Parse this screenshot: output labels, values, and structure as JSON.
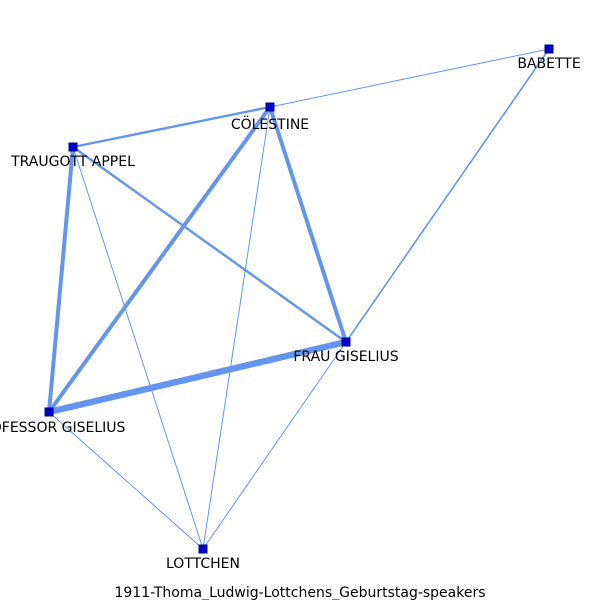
{
  "caption": "1911-Thoma_Ludwig-Lottchens_Geburtstag-speakers",
  "colors": {
    "edge": "#6495ed",
    "node_fill": "#0000cd",
    "node_stroke": "#00008b"
  },
  "nodes": [
    {
      "id": "babette",
      "label": "BABETTE"
    },
    {
      "id": "colestine",
      "label": "CÖLESTINE"
    },
    {
      "id": "traugott",
      "label": "TRAUGOTT APPEL"
    },
    {
      "id": "frau",
      "label": "FRAU GISELIUS"
    },
    {
      "id": "professor",
      "label": "PROFESSOR GISELIUS"
    },
    {
      "id": "lottchen",
      "label": "LOTTCHEN"
    }
  ],
  "edges": [
    {
      "source": "colestine",
      "target": "babette",
      "weight": 1
    },
    {
      "source": "frau",
      "target": "babette",
      "weight": 2
    },
    {
      "source": "traugott",
      "target": "colestine",
      "weight": 3
    },
    {
      "source": "colestine",
      "target": "professor",
      "weight": 5
    },
    {
      "source": "colestine",
      "target": "frau",
      "weight": 5
    },
    {
      "source": "colestine",
      "target": "lottchen",
      "weight": 1
    },
    {
      "source": "traugott",
      "target": "professor",
      "weight": 5
    },
    {
      "source": "traugott",
      "target": "frau",
      "weight": 3
    },
    {
      "source": "traugott",
      "target": "lottchen",
      "weight": 1
    },
    {
      "source": "professor",
      "target": "frau",
      "weight": 8
    },
    {
      "source": "professor",
      "target": "lottchen",
      "weight": 1
    },
    {
      "source": "frau",
      "target": "lottchen",
      "weight": 1
    }
  ]
}
